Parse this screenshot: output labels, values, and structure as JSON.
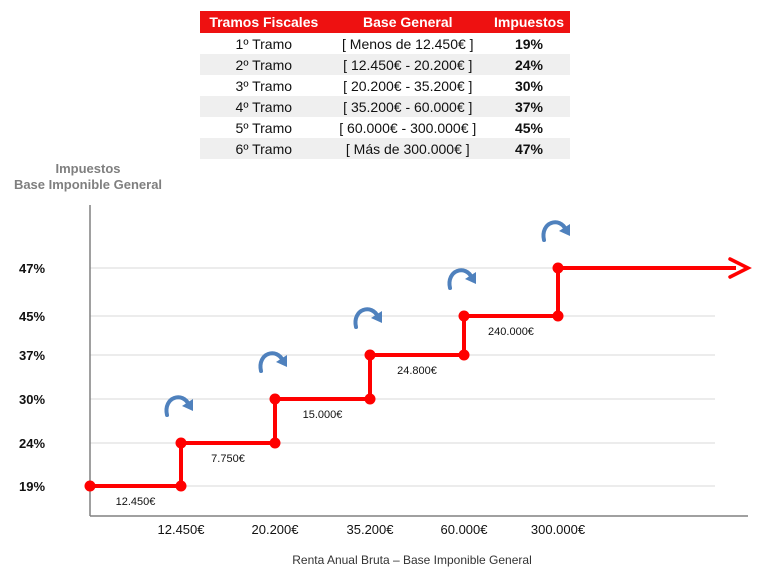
{
  "table": {
    "headers": [
      "Tramos Fiscales",
      "Base General",
      "Impuestos"
    ],
    "rows": [
      {
        "tramo": "1º Tramo",
        "base": "[ Menos de 12.450€ ]",
        "rate": "19%"
      },
      {
        "tramo": "2º Tramo",
        "base": "[ 12.450€ - 20.200€ ]",
        "rate": "24%"
      },
      {
        "tramo": "3º Tramo",
        "base": "[ 20.200€ - 35.200€ ]",
        "rate": "30%"
      },
      {
        "tramo": "4º Tramo",
        "base": "[ 35.200€ - 60.000€ ]",
        "rate": "37%"
      },
      {
        "tramo": "5º Tramo",
        "base": "[ 60.000€ - 300.000€ ]",
        "rate": "45%"
      },
      {
        "tramo": "6º Tramo",
        "base": "[ Más de 300.000€ ]",
        "rate": "47%"
      }
    ]
  },
  "chart_data": {
    "type": "line",
    "step": true,
    "ylabel": [
      "Impuestos",
      "Base Imponible General"
    ],
    "xlabel": "Renta Anual Bruta – Base Imponible General",
    "y_ticks": [
      "19%",
      "24%",
      "30%",
      "37%",
      "45%",
      "47%"
    ],
    "x_ticks": [
      "12.450€",
      "20.200€",
      "35.200€",
      "60.000€",
      "300.000€"
    ],
    "segments": [
      {
        "rate": "19%",
        "width_label": "12.450€"
      },
      {
        "rate": "24%",
        "width_label": "7.750€"
      },
      {
        "rate": "30%",
        "width_label": "15.000€"
      },
      {
        "rate": "37%",
        "width_label": "24.800€"
      },
      {
        "rate": "45%",
        "width_label": "240.000€"
      },
      {
        "rate": "47%",
        "width_label": ""
      }
    ],
    "grid": true,
    "colors": {
      "line": "#ff0000",
      "arrow_icon": "#4f81bd",
      "axis": "#808080",
      "grid": "#d9d9d9"
    }
  }
}
